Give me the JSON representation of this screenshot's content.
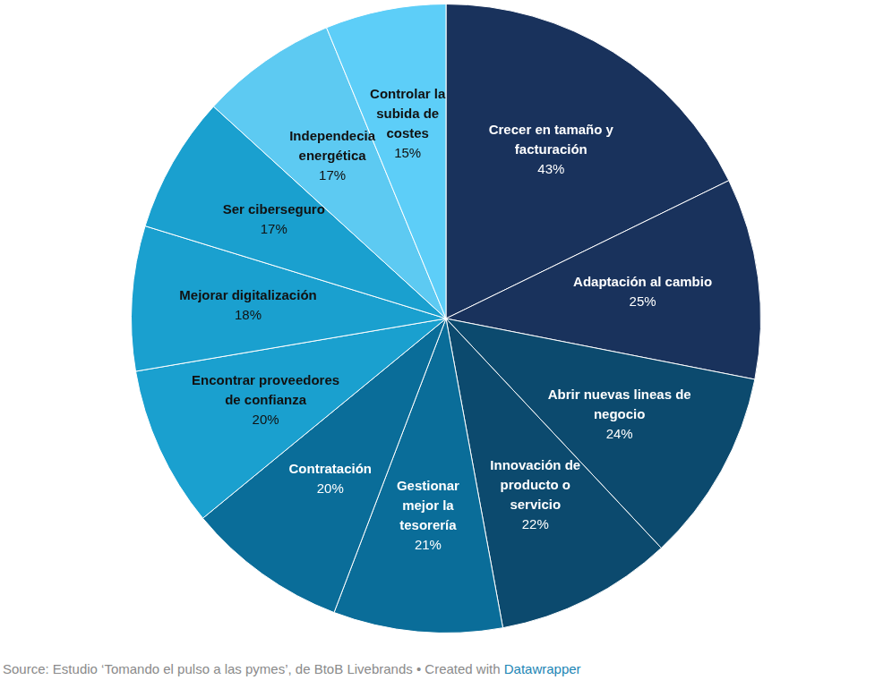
{
  "chart_data": {
    "type": "pie",
    "categories": [
      "Crecer en tamaño y facturación",
      "Adaptación al cambio",
      "Abrir nuevas lineas de negocio",
      "Innovación de producto o servicio",
      "Gestionar mejor la tesorería",
      "Contratación",
      "Encontrar proveedores de confianza",
      "Mejorar digitalización",
      "Ser ciberseguro",
      "Independecia energética",
      "Controlar la subida de costes"
    ],
    "values": [
      43,
      25,
      24,
      22,
      21,
      20,
      20,
      18,
      17,
      17,
      15
    ],
    "value_labels": [
      "43%",
      "25%",
      "24%",
      "22%",
      "21%",
      "20%",
      "20%",
      "18%",
      "17%",
      "17%",
      "15%"
    ],
    "colors": [
      "#19325c",
      "#19325c",
      "#0c4a6e",
      "#0c4a6e",
      "#0a6d99",
      "#0a6d99",
      "#1aa0cf",
      "#1aa0cf",
      "#1aa0cf",
      "#5dcaf2",
      "#5dcef8"
    ],
    "data_labels": true,
    "source": "Source: Estudio ‘Tomando el pulso a las pymes’, de BtoB Livebrands • Created with",
    "credit": "Datawrapper"
  }
}
